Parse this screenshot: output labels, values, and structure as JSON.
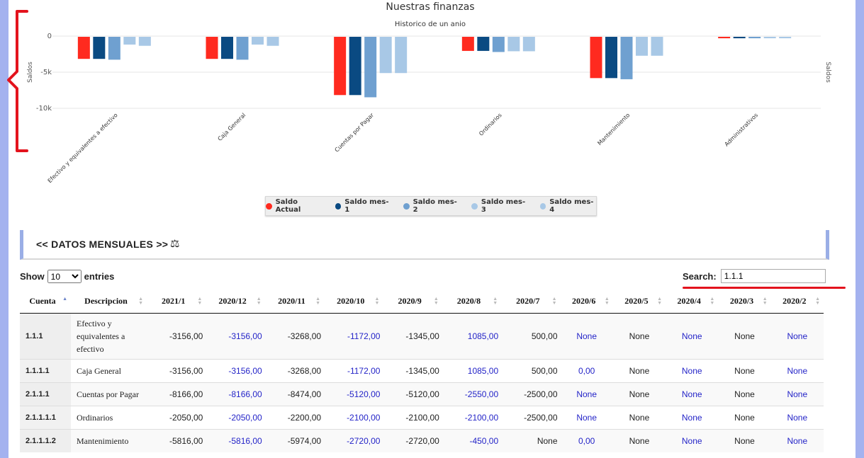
{
  "chart_data": {
    "type": "bar",
    "title": "Nuestras finanzas",
    "subtitle": "Historico de un anio",
    "ylabel": "Saldos",
    "ylabel_right": "Saldos",
    "ylim": [
      -10000,
      0
    ],
    "yticks": [
      0,
      -5000,
      -10000
    ],
    "ytick_labels": [
      "0",
      "-5k",
      "-10k"
    ],
    "categories": [
      "Efectivo y equivalentes a efectivo",
      "Caja General",
      "Cuentas por Pagar",
      "Ordinarios",
      "Mantenimiento",
      "Administrativos"
    ],
    "series": [
      {
        "name": "Saldo Actual",
        "color": "#ff2a1f",
        "values": [
          -3156,
          -3156,
          -8166,
          -2050,
          -5816,
          -300
        ]
      },
      {
        "name": "Saldo mes-1",
        "color": "#0a4a82",
        "values": [
          -3156,
          -3156,
          -8166,
          -2050,
          -5816,
          -300
        ]
      },
      {
        "name": "Saldo mes-2",
        "color": "#6fa0d0",
        "values": [
          -3268,
          -3268,
          -8474,
          -2200,
          -5974,
          -300
        ]
      },
      {
        "name": "Saldo mes-3",
        "color": "#a8c8e6",
        "values": [
          -1172,
          -1172,
          -5120,
          -2100,
          -2720,
          -300
        ]
      },
      {
        "name": "Saldo mes-4",
        "color": "#a8c8e6",
        "values": [
          -1345,
          -1345,
          -5120,
          -2100,
          -2720,
          -300
        ]
      }
    ],
    "grid": true,
    "legend_position": "bottom"
  },
  "panel": {
    "title": "<< DATOS MENSUALES >>",
    "icon": "balance-scale-icon"
  },
  "controls": {
    "show_label": "Show",
    "entries_value": "10",
    "entries_label": "entries",
    "search_label": "Search:",
    "search_value": "1.1.1"
  },
  "table": {
    "columns": [
      "Cuenta",
      "Descripcion",
      "2021/1",
      "2020/12",
      "2020/11",
      "2020/10",
      "2020/9",
      "2020/8",
      "2020/7",
      "2020/6",
      "2020/5",
      "2020/4",
      "2020/3",
      "2020/2"
    ],
    "rows": [
      [
        "1.1.1",
        "Efectivo y equivalentes a efectivo",
        "-3156,00",
        "-3156,00",
        "-3268,00",
        "-1172,00",
        "-1345,00",
        "1085,00",
        "500,00",
        "None",
        "None",
        "None",
        "None",
        "None"
      ],
      [
        "1.1.1.1",
        "Caja General",
        "-3156,00",
        "-3156,00",
        "-3268,00",
        "-1172,00",
        "-1345,00",
        "1085,00",
        "500,00",
        "0,00",
        "None",
        "None",
        "None",
        "None"
      ],
      [
        "2.1.1.1",
        "Cuentas por Pagar",
        "-8166,00",
        "-8166,00",
        "-8474,00",
        "-5120,00",
        "-5120,00",
        "-2550,00",
        "-2500,00",
        "None",
        "None",
        "None",
        "None",
        "None"
      ],
      [
        "2.1.1.1.1",
        "Ordinarios",
        "-2050,00",
        "-2050,00",
        "-2200,00",
        "-2100,00",
        "-2100,00",
        "-2100,00",
        "-2500,00",
        "None",
        "None",
        "None",
        "None",
        "None"
      ],
      [
        "2.1.1.1.2",
        "Mantenimiento",
        "-5816,00",
        "-5816,00",
        "-5974,00",
        "-2720,00",
        "-2720,00",
        "-450,00",
        "None",
        "0,00",
        "None",
        "None",
        "None",
        "None"
      ]
    ]
  }
}
